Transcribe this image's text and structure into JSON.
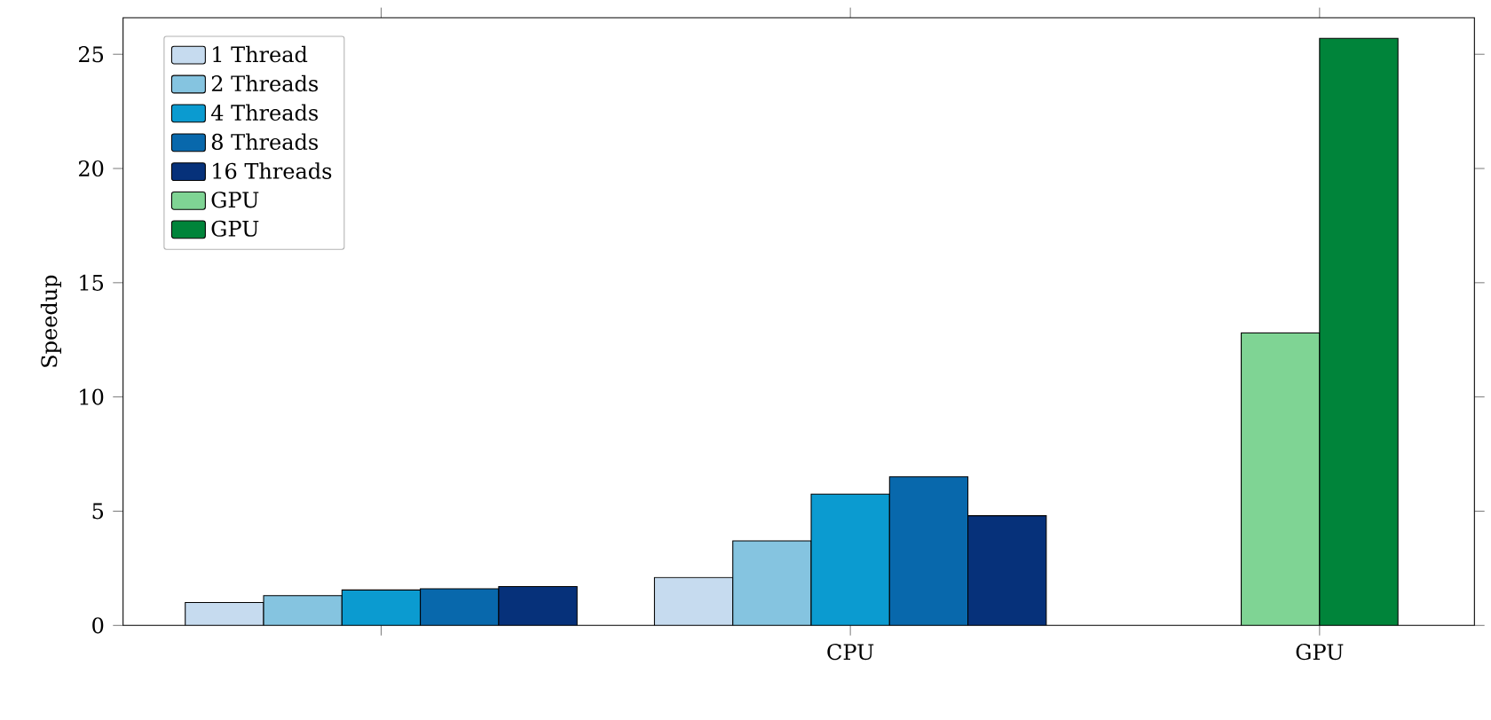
{
  "chart_data": {
    "type": "bar",
    "ylabel": "Speedup",
    "categories": [
      null,
      "CPU",
      "GPU"
    ],
    "series": [
      {
        "name": "1 Thread",
        "color": "#c6dbef",
        "values": [
          1.0,
          2.1,
          null
        ]
      },
      {
        "name": "2 Threads",
        "color": "#85c4e0",
        "values": [
          1.3,
          3.7,
          null
        ]
      },
      {
        "name": "4 Threads",
        "color": "#0b9bd0",
        "values": [
          1.55,
          5.75,
          null
        ]
      },
      {
        "name": "8 Threads",
        "color": "#0868ac",
        "values": [
          1.6,
          6.5,
          null
        ]
      },
      {
        "name": "16 Threads",
        "color": "#06317a",
        "values": [
          1.7,
          4.8,
          null
        ]
      },
      {
        "name": "GPU",
        "color": "#7fd494",
        "values": [
          null,
          null,
          12.8
        ]
      },
      {
        "name": "GPU",
        "color": "#00843a",
        "values": [
          null,
          null,
          25.7
        ]
      }
    ],
    "ylim": [
      0,
      26.6
    ],
    "yticks": [
      0,
      5,
      10,
      15,
      20,
      25
    ],
    "legend": "top left"
  }
}
